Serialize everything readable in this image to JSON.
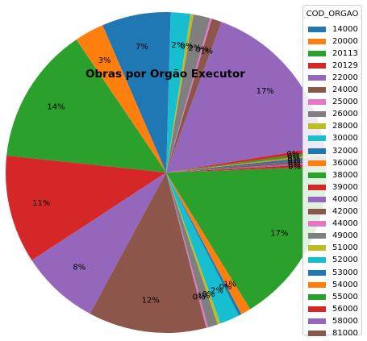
{
  "chart_data": {
    "type": "pie",
    "title": "Obras por Orgão Executor",
    "legend_title": "COD_ORGAO",
    "legend_position": "right",
    "labels": [
      "14000",
      "20000",
      "20113",
      "20129",
      "22000",
      "24000",
      "25000",
      "26000",
      "28000",
      "30000",
      "32000",
      "36000",
      "38000",
      "39000",
      "40000",
      "42000",
      "44000",
      "49000",
      "51000",
      "52000",
      "53000",
      "54000",
      "55000",
      "56000",
      "58000",
      "81000"
    ],
    "values": [
      0.3,
      0.2,
      0.3,
      0.4,
      17,
      1,
      0.2,
      1.7,
      0.3,
      2,
      7,
      3,
      14,
      11,
      8,
      12,
      0.2,
      1,
      0.3,
      2,
      0.3,
      1,
      17,
      0.3,
      0.2,
      0.3
    ],
    "pct_labels": [
      "0%",
      "0%",
      "0%",
      "0%",
      "17%",
      "1%",
      "0%",
      "2%",
      "0%",
      "2%",
      "7%",
      "3%",
      "14%",
      "11%",
      "8%",
      "12%",
      "0%",
      "1%",
      "0%",
      "2%",
      "0%",
      "1%",
      "17%",
      "0%",
      "0%",
      "0%"
    ],
    "colors": [
      "#1f77b4",
      "#ff7f0e",
      "#2ca02c",
      "#d62728",
      "#9467bd",
      "#8c564b",
      "#e377c2",
      "#7f7f7f",
      "#bcbd22",
      "#17becf",
      "#1f77b4",
      "#ff7f0e",
      "#2ca02c",
      "#d62728",
      "#9467bd",
      "#8c564b",
      "#e377c2",
      "#7f7f7f",
      "#bcbd22",
      "#17becf",
      "#1f77b4",
      "#ff7f0e",
      "#2ca02c",
      "#d62728",
      "#9467bd",
      "#8c564b"
    ]
  }
}
